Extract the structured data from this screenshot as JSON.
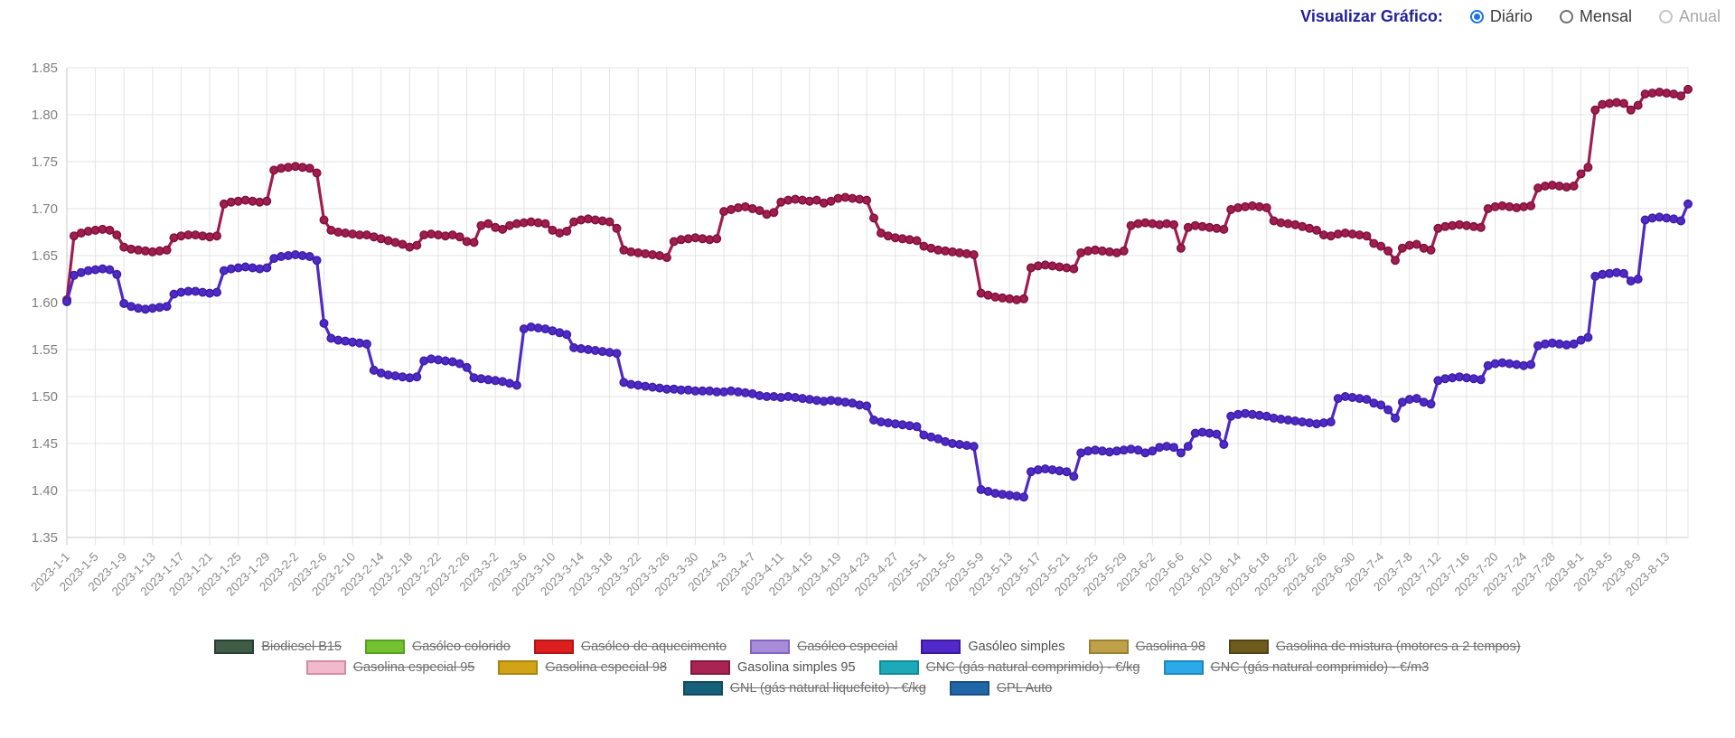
{
  "header": {
    "view_label": "Visualizar Gráfico:",
    "options": [
      {
        "label": "Diário",
        "selected": true,
        "disabled": false
      },
      {
        "label": "Mensal",
        "selected": false,
        "disabled": false
      },
      {
        "label": "Anual",
        "selected": false,
        "disabled": true
      }
    ]
  },
  "chart_data": {
    "type": "line",
    "title": "",
    "xlabel": "",
    "ylabel": "",
    "ylim": [
      1.35,
      1.85
    ],
    "y_ticks": [
      1.35,
      1.4,
      1.45,
      1.5,
      1.55,
      1.6,
      1.65,
      1.7,
      1.75,
      1.8,
      1.85
    ],
    "grid": true,
    "legend_position": "bottom",
    "x_start_date": "2023-1-1",
    "x_points_per_tick": 4,
    "x_tick_labels": [
      "2023-1-1",
      "2023-1-5",
      "2023-1-9",
      "2023-1-13",
      "2023-1-17",
      "2023-1-21",
      "2023-1-25",
      "2023-1-29",
      "2023-2-2",
      "2023-2-6",
      "2023-2-10",
      "2023-2-14",
      "2023-2-18",
      "2023-2-22",
      "2023-2-26",
      "2023-3-2",
      "2023-3-6",
      "2023-3-10",
      "2023-3-14",
      "2023-3-18",
      "2023-3-22",
      "2023-3-26",
      "2023-3-30",
      "2023-4-3",
      "2023-4-7",
      "2023-4-11",
      "2023-4-15",
      "2023-4-19",
      "2023-4-23",
      "2023-4-27",
      "2023-5-1",
      "2023-5-5",
      "2023-5-9",
      "2023-5-13",
      "2023-5-17",
      "2023-5-21",
      "2023-5-25",
      "2023-5-29",
      "2023-6-2",
      "2023-6-6",
      "2023-6-10",
      "2023-6-14",
      "2023-6-18",
      "2023-6-22",
      "2023-6-26",
      "2023-6-30",
      "2023-7-4",
      "2023-7-8",
      "2023-7-12",
      "2023-7-16",
      "2023-7-20",
      "2023-7-24",
      "2023-7-28",
      "2023-8-1",
      "2023-8-5",
      "2023-8-9",
      "2023-8-13"
    ],
    "series": [
      {
        "name": "Gasolina simples 95",
        "color": "#a01d4f",
        "point_border": "#7d1038",
        "values": [
          1.603,
          1.671,
          1.674,
          1.676,
          1.677,
          1.678,
          1.677,
          1.672,
          1.659,
          1.657,
          1.656,
          1.655,
          1.654,
          1.655,
          1.656,
          1.669,
          1.671,
          1.672,
          1.672,
          1.671,
          1.67,
          1.671,
          1.705,
          1.707,
          1.708,
          1.709,
          1.708,
          1.707,
          1.708,
          1.741,
          1.743,
          1.744,
          1.745,
          1.744,
          1.743,
          1.738,
          1.688,
          1.677,
          1.675,
          1.674,
          1.673,
          1.672,
          1.672,
          1.67,
          1.668,
          1.666,
          1.664,
          1.662,
          1.659,
          1.661,
          1.672,
          1.673,
          1.672,
          1.671,
          1.672,
          1.67,
          1.665,
          1.664,
          1.682,
          1.684,
          1.68,
          1.678,
          1.682,
          1.684,
          1.685,
          1.686,
          1.685,
          1.684,
          1.677,
          1.674,
          1.676,
          1.686,
          1.688,
          1.689,
          1.688,
          1.687,
          1.686,
          1.679,
          1.656,
          1.654,
          1.653,
          1.652,
          1.651,
          1.65,
          1.648,
          1.665,
          1.667,
          1.668,
          1.669,
          1.668,
          1.667,
          1.668,
          1.697,
          1.699,
          1.701,
          1.702,
          1.7,
          1.698,
          1.694,
          1.696,
          1.707,
          1.709,
          1.71,
          1.709,
          1.708,
          1.709,
          1.706,
          1.708,
          1.711,
          1.712,
          1.711,
          1.71,
          1.709,
          1.69,
          1.674,
          1.671,
          1.669,
          1.668,
          1.667,
          1.666,
          1.66,
          1.658,
          1.656,
          1.655,
          1.654,
          1.653,
          1.652,
          1.651,
          1.61,
          1.608,
          1.606,
          1.605,
          1.604,
          1.603,
          1.604,
          1.637,
          1.639,
          1.64,
          1.639,
          1.638,
          1.637,
          1.636,
          1.653,
          1.655,
          1.656,
          1.655,
          1.654,
          1.653,
          1.655,
          1.682,
          1.684,
          1.685,
          1.684,
          1.683,
          1.684,
          1.683,
          1.658,
          1.68,
          1.682,
          1.681,
          1.68,
          1.679,
          1.678,
          1.699,
          1.701,
          1.702,
          1.703,
          1.702,
          1.701,
          1.687,
          1.685,
          1.684,
          1.683,
          1.681,
          1.679,
          1.677,
          1.672,
          1.671,
          1.673,
          1.674,
          1.673,
          1.672,
          1.671,
          1.663,
          1.66,
          1.655,
          1.645,
          1.658,
          1.661,
          1.662,
          1.658,
          1.656,
          1.679,
          1.681,
          1.682,
          1.683,
          1.682,
          1.681,
          1.68,
          1.7,
          1.702,
          1.703,
          1.702,
          1.701,
          1.702,
          1.703,
          1.722,
          1.724,
          1.725,
          1.724,
          1.723,
          1.724,
          1.737,
          1.744,
          1.805,
          1.811,
          1.812,
          1.813,
          1.812,
          1.805,
          1.81,
          1.822,
          1.823,
          1.824,
          1.823,
          1.822,
          1.82,
          1.827
        ]
      },
      {
        "name": "Gasóleo simples",
        "color": "#4f2ac4",
        "point_border": "#3a1da6",
        "values": [
          1.601,
          1.629,
          1.632,
          1.634,
          1.635,
          1.636,
          1.635,
          1.63,
          1.599,
          1.596,
          1.594,
          1.593,
          1.594,
          1.595,
          1.596,
          1.609,
          1.611,
          1.612,
          1.612,
          1.611,
          1.61,
          1.611,
          1.634,
          1.636,
          1.637,
          1.638,
          1.637,
          1.636,
          1.637,
          1.647,
          1.649,
          1.65,
          1.651,
          1.65,
          1.649,
          1.645,
          1.578,
          1.562,
          1.56,
          1.559,
          1.558,
          1.557,
          1.556,
          1.528,
          1.525,
          1.523,
          1.522,
          1.521,
          1.52,
          1.521,
          1.538,
          1.54,
          1.539,
          1.538,
          1.537,
          1.535,
          1.531,
          1.52,
          1.519,
          1.518,
          1.517,
          1.516,
          1.514,
          1.512,
          1.572,
          1.574,
          1.573,
          1.572,
          1.57,
          1.568,
          1.566,
          1.552,
          1.551,
          1.55,
          1.549,
          1.548,
          1.547,
          1.546,
          1.515,
          1.513,
          1.512,
          1.511,
          1.51,
          1.509,
          1.508,
          1.508,
          1.507,
          1.507,
          1.506,
          1.506,
          1.506,
          1.505,
          1.505,
          1.506,
          1.505,
          1.504,
          1.503,
          1.501,
          1.5,
          1.5,
          1.499,
          1.5,
          1.499,
          1.498,
          1.497,
          1.496,
          1.495,
          1.496,
          1.495,
          1.494,
          1.493,
          1.491,
          1.49,
          1.475,
          1.473,
          1.472,
          1.471,
          1.47,
          1.469,
          1.468,
          1.459,
          1.457,
          1.455,
          1.452,
          1.45,
          1.449,
          1.448,
          1.447,
          1.401,
          1.399,
          1.397,
          1.396,
          1.395,
          1.394,
          1.393,
          1.42,
          1.422,
          1.423,
          1.422,
          1.421,
          1.42,
          1.415,
          1.44,
          1.442,
          1.443,
          1.442,
          1.441,
          1.442,
          1.443,
          1.444,
          1.443,
          1.44,
          1.442,
          1.446,
          1.447,
          1.446,
          1.44,
          1.447,
          1.461,
          1.462,
          1.461,
          1.46,
          1.449,
          1.479,
          1.481,
          1.482,
          1.481,
          1.48,
          1.479,
          1.477,
          1.476,
          1.475,
          1.474,
          1.473,
          1.472,
          1.471,
          1.472,
          1.473,
          1.498,
          1.5,
          1.499,
          1.498,
          1.497,
          1.493,
          1.491,
          1.486,
          1.477,
          1.494,
          1.497,
          1.498,
          1.494,
          1.492,
          1.517,
          1.519,
          1.52,
          1.521,
          1.52,
          1.519,
          1.518,
          1.533,
          1.535,
          1.536,
          1.535,
          1.534,
          1.533,
          1.534,
          1.554,
          1.556,
          1.557,
          1.556,
          1.555,
          1.556,
          1.56,
          1.563,
          1.628,
          1.63,
          1.631,
          1.632,
          1.631,
          1.623,
          1.625,
          1.688,
          1.69,
          1.691,
          1.69,
          1.689,
          1.687,
          1.705
        ]
      }
    ]
  },
  "legend": {
    "rows": [
      [
        {
          "label": "Biodiesel B15",
          "fill": "#3e5c46",
          "border": "#27402f",
          "active": false
        },
        {
          "label": "Gasóleo colorido",
          "fill": "#72c231",
          "border": "#58a01f",
          "active": false
        },
        {
          "label": "Gasóleo de aquecimento",
          "fill": "#dc1e1e",
          "border": "#b01717",
          "active": false
        },
        {
          "label": "Gasóleo especial",
          "fill": "#a78cd9",
          "border": "#8463c4",
          "active": false
        },
        {
          "label": "Gasóleo simples",
          "fill": "#5229c9",
          "border": "#3b1aa0",
          "active": true
        },
        {
          "label": "Gasolina 98",
          "fill": "#bfa14a",
          "border": "#9c8132",
          "active": false
        },
        {
          "label": "Gasolina de mistura (motores a 2 tempos)",
          "fill": "#6f5b1d",
          "border": "#534311",
          "active": false
        }
      ],
      [
        {
          "label": "Gasolina especial 95",
          "fill": "#f0bacc",
          "border": "#d38ba6",
          "active": false
        },
        {
          "label": "Gasolina especial 98",
          "fill": "#d2a317",
          "border": "#aa840e",
          "active": false
        },
        {
          "label": "Gasolina simples 95",
          "fill": "#a82452",
          "border": "#7f1839",
          "active": true
        },
        {
          "label": "GNC (gás natural comprimido) - €/kg",
          "fill": "#1caabb",
          "border": "#148995",
          "active": false
        },
        {
          "label": "GNC (gás natural comprimido) - €/m3",
          "fill": "#2aaae9",
          "border": "#1e87bd",
          "active": false
        }
      ],
      [
        {
          "label": "GNL (gás natural liquefeito) - €/kg",
          "fill": "#176079",
          "border": "#104a5e",
          "active": false
        },
        {
          "label": "GPL Auto",
          "fill": "#2167a7",
          "border": "#174f82",
          "active": false
        }
      ]
    ]
  }
}
